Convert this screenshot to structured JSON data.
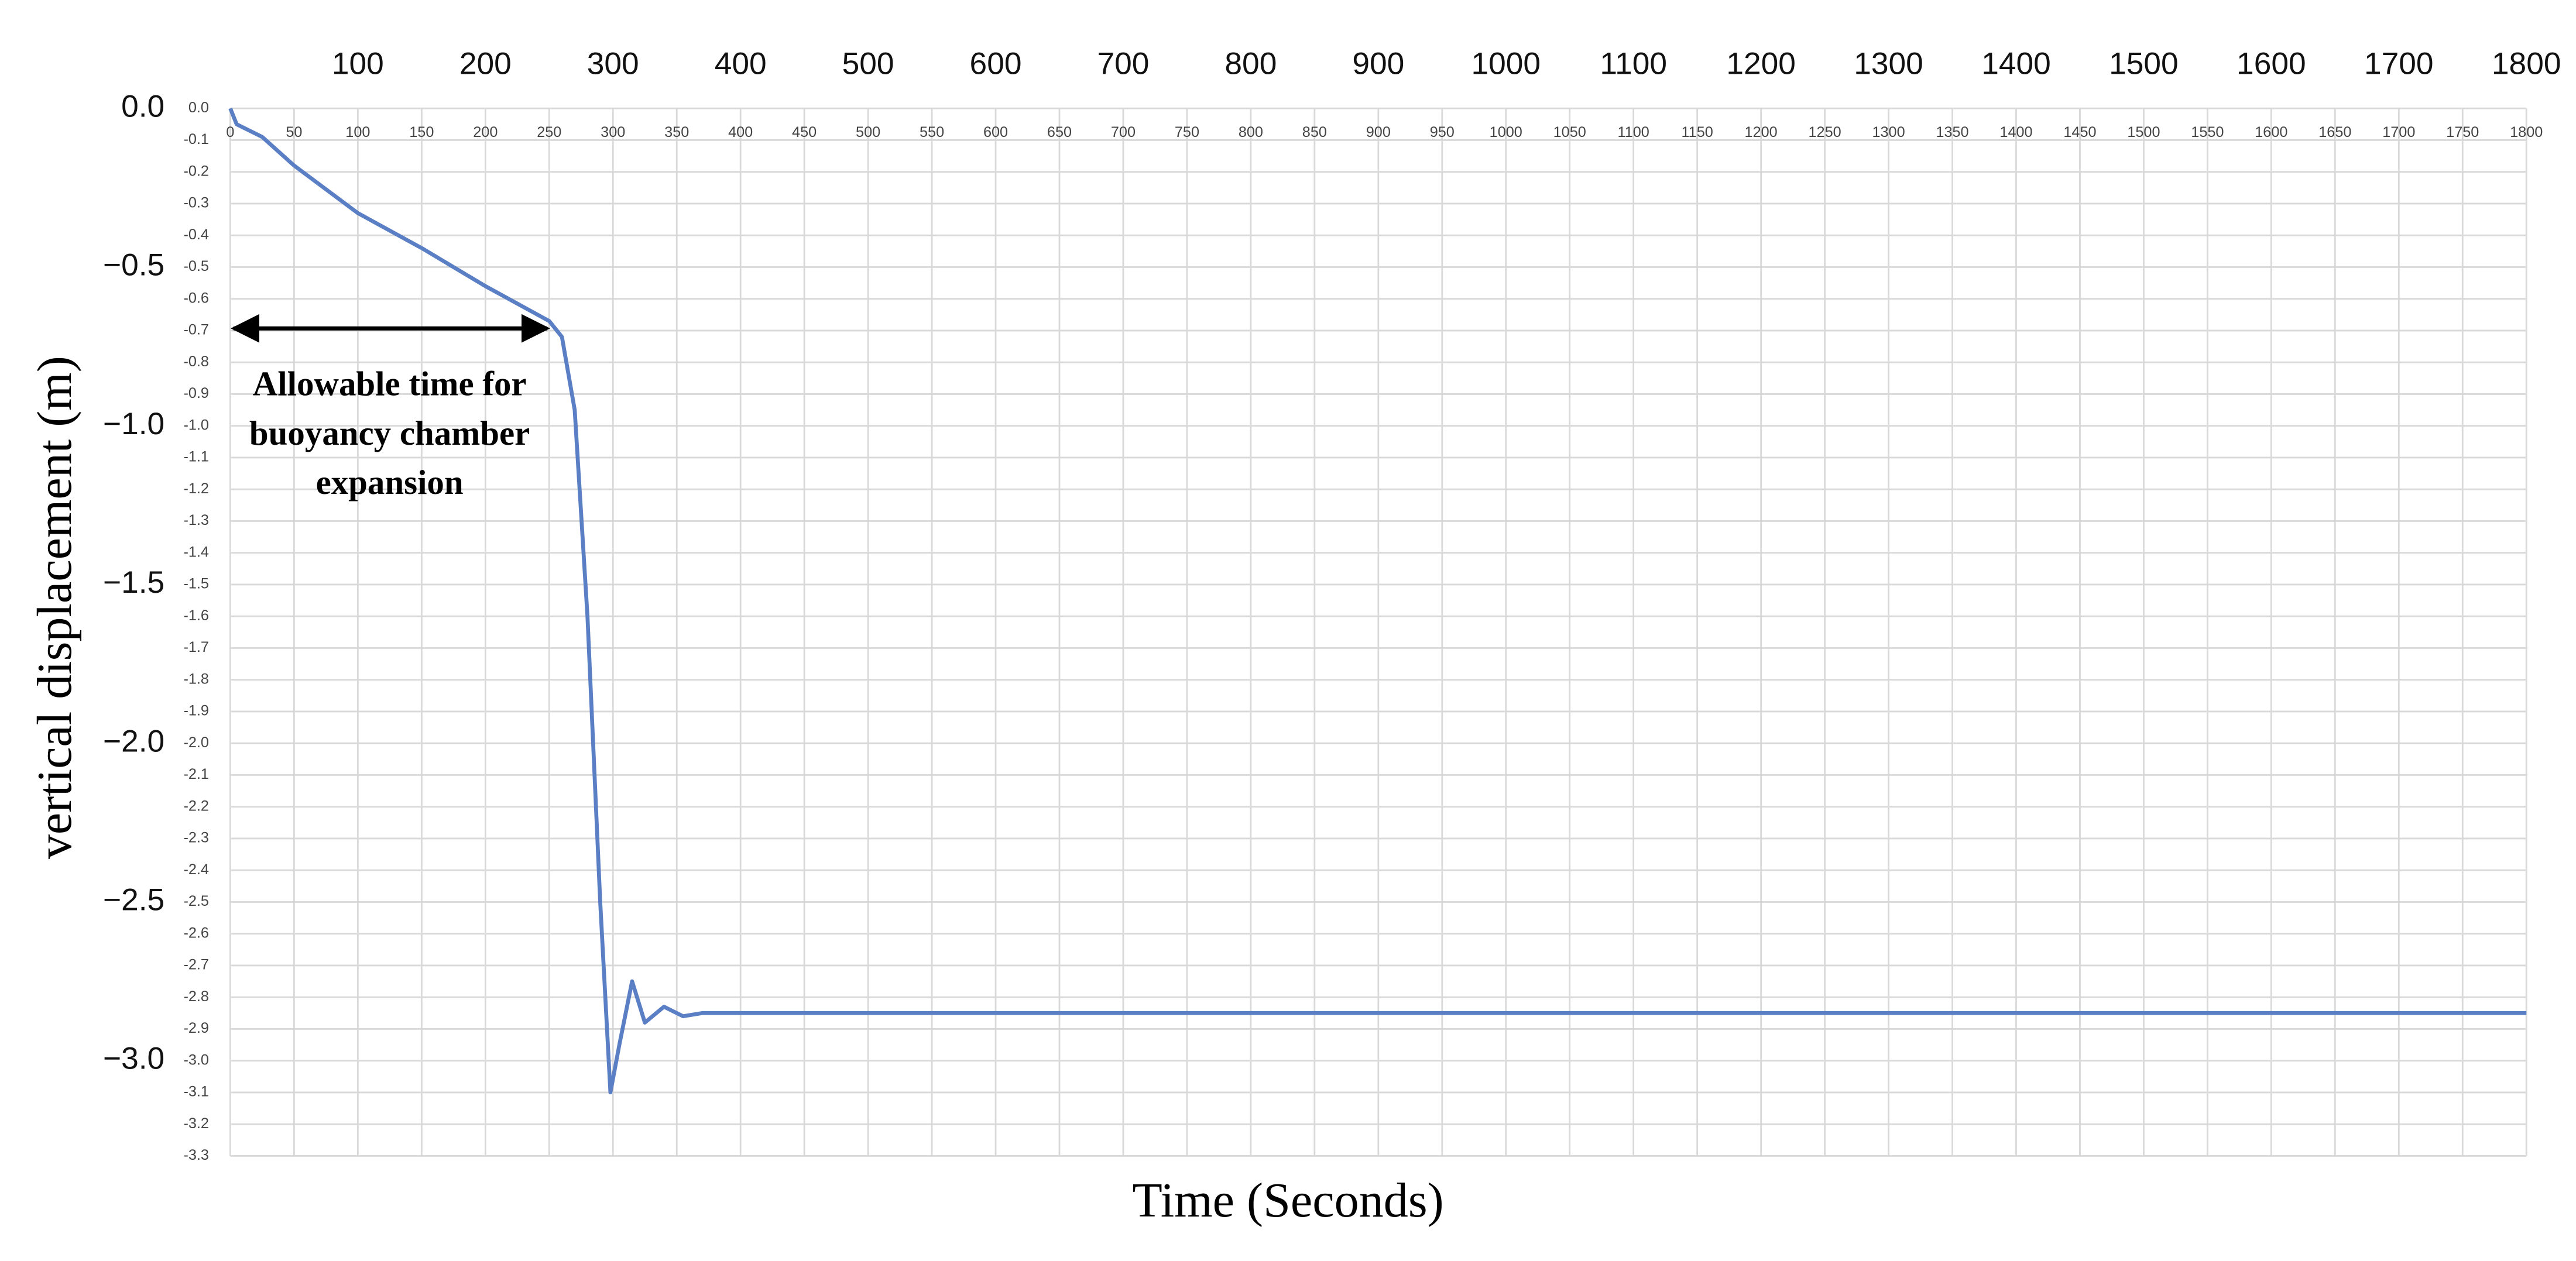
{
  "chart_data": {
    "type": "line",
    "x_label": "Time (Seconds)",
    "y_label": "vertical displacement (m)",
    "annotation": [
      "Allowable time for",
      "buoyancy chamber",
      "expansion"
    ],
    "xlim": [
      0,
      1800
    ],
    "ylim": [
      -3.3,
      0
    ],
    "xticks": [
      0,
      50,
      100,
      150,
      200,
      250,
      300,
      350,
      400,
      450,
      500,
      550,
      600,
      650,
      700,
      750,
      800,
      850,
      900,
      950,
      1000,
      1050,
      1100,
      1150,
      1200,
      1250,
      1300,
      1350,
      1400,
      1450,
      1500,
      1550,
      1600,
      1650,
      1700,
      1750,
      1800
    ],
    "yticks": [
      {
        "value": 0,
        "label": "0.0"
      },
      -0.1,
      -0.2,
      -0.3,
      -0.4,
      -0.5,
      -0.6,
      -0.7,
      -0.8,
      -0.9,
      {
        "value": -1,
        "label": "-1.0"
      },
      -1.1,
      -1.2,
      -1.3,
      -1.4,
      -1.5,
      -1.6,
      -1.7,
      -1.8,
      -1.9,
      {
        "value": -2,
        "label": "-2.0"
      },
      -2.1,
      -2.2,
      -2.3,
      -2.4,
      -2.5,
      -2.6,
      -2.7,
      -2.8,
      -2.9,
      {
        "value": -3,
        "label": "-3.0"
      },
      -3.1,
      -3.2,
      -3.3
    ],
    "x2ticks": [
      100,
      200,
      300,
      400,
      500,
      600,
      700,
      800,
      900,
      1000,
      1100,
      1200,
      1300,
      1400,
      1500,
      1600,
      1700,
      1800
    ],
    "y2ticks": [
      {
        "value": 0,
        "label": "0.0"
      },
      {
        "value": -0.5,
        "label": "−0.5"
      },
      {
        "value": -1,
        "label": "−1.0"
      },
      {
        "value": -1.5,
        "label": "−1.5"
      },
      {
        "value": -2,
        "label": "−2.0"
      },
      {
        "value": -2.5,
        "label": "−2.5"
      },
      {
        "value": -3,
        "label": "−3.0"
      }
    ],
    "grid": true,
    "x": [
      0,
      5,
      25,
      50,
      100,
      150,
      200,
      250,
      260,
      270,
      280,
      290,
      298,
      305,
      315,
      325,
      340,
      355,
      370,
      1800
    ],
    "series": [
      {
        "name": "vertical displacement",
        "color": "#5b7fc4",
        "values": [
          0,
          -0.05,
          -0.09,
          -0.18,
          -0.33,
          -0.44,
          -0.56,
          -0.67,
          -0.72,
          -0.95,
          -1.6,
          -2.5,
          -3.1,
          -2.95,
          -2.75,
          -2.88,
          -2.83,
          -2.86,
          -2.85,
          -2.85
        ]
      }
    ]
  }
}
